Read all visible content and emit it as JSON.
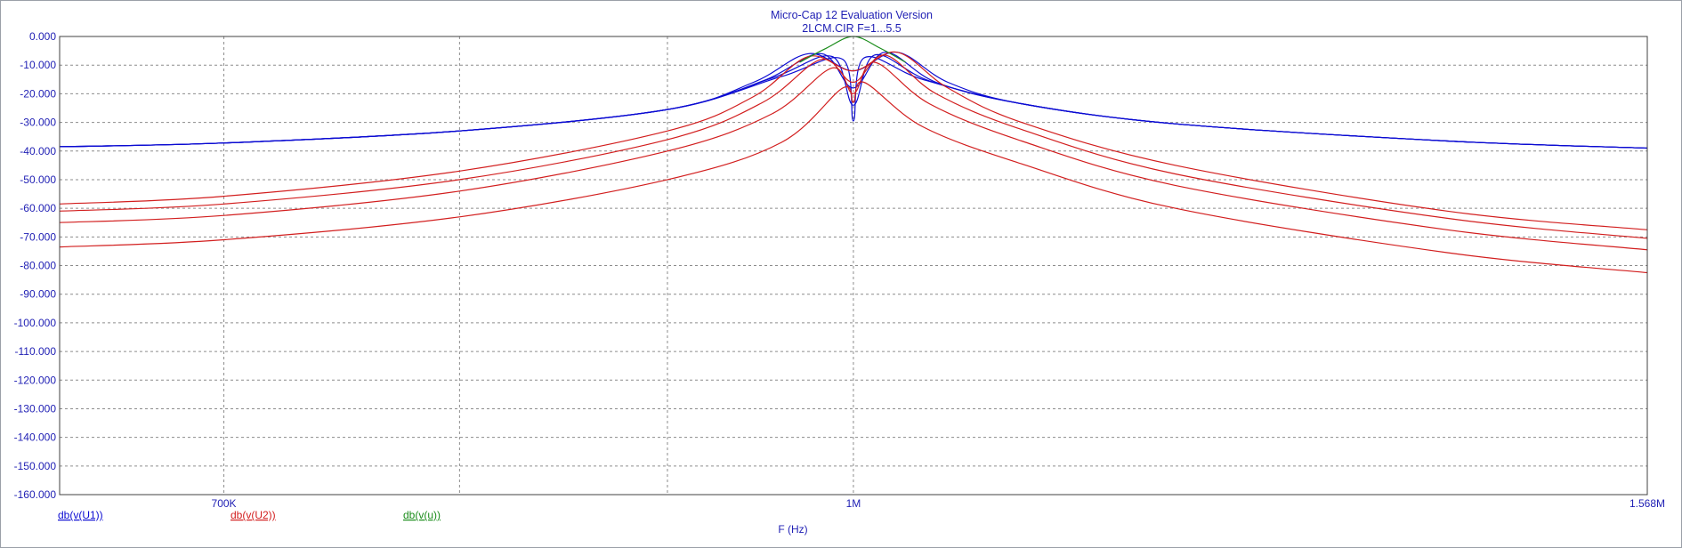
{
  "title_lines": [
    "Micro-Cap 12 Evaluation Version",
    "2LCM.CIR F=1...5.5"
  ],
  "colors": {
    "text": "#1f1fb4",
    "grid": "#8c8c8c",
    "frame": "#404040",
    "series_u1": "#0b0bd2",
    "series_u2": "#d21e1e",
    "series_u": "#1a8c1a"
  },
  "chart_data": {
    "type": "line",
    "title": "Micro-Cap 12 Evaluation Version",
    "subtitle": "2LCM.CIR F=1...5.5",
    "xlabel": "F (Hz)",
    "ylabel": "",
    "x_scale": "log",
    "xlim": [
      637800,
      1568000
    ],
    "ylim": [
      -160,
      0
    ],
    "grid": true,
    "x_ticks": [
      {
        "value": 700000,
        "label": "700K"
      },
      {
        "value": 1000000,
        "label": "1M"
      },
      {
        "value": 1568000,
        "label": "1.568M"
      }
    ],
    "x_grid_values": [
      700000,
      800000,
      900000,
      1000000
    ],
    "y_ticks": [
      0,
      -10,
      -20,
      -30,
      -40,
      -50,
      -60,
      -70,
      -80,
      -90,
      -100,
      -110,
      -120,
      -130,
      -140,
      -150,
      -160
    ],
    "y_tick_labels": [
      "0.000",
      "-10.000",
      "-20.000",
      "-30.000",
      "-40.000",
      "-50.000",
      "-60.000",
      "-70.000",
      "-80.000",
      "-90.000",
      "-100.000",
      "-110.000",
      "-120.000",
      "-130.000",
      "-140.000",
      "-150.000",
      "-160.000"
    ],
    "legend": [
      "db(v(U1))",
      "db(v(U2))",
      "db(v(u))"
    ],
    "legend_position": "bottom-left",
    "series": [
      {
        "name": "db(v(U1))",
        "color": "#0b0bd2",
        "group": "U1",
        "x": [
          637800,
          700000,
          800000,
          900000,
          945000,
          975000,
          1000000,
          1025000,
          1055000,
          1100000,
          1200000,
          1400000,
          1568000
        ],
        "y": [
          -38.5,
          -37.2,
          -33.0,
          -25.5,
          -16.0,
          -6.0,
          -12.0,
          -5.5,
          -16.0,
          -23.5,
          -30.5,
          -36.5,
          -39.0
        ]
      },
      {
        "name": "db(v(U1))",
        "color": "#0b0bd2",
        "group": "U1",
        "x": [
          637800,
          700000,
          800000,
          900000,
          950000,
          982000,
          1000000,
          1018000,
          1048000,
          1100000,
          1200000,
          1400000,
          1568000
        ],
        "y": [
          -38.5,
          -37.2,
          -33.0,
          -25.5,
          -15.5,
          -6.0,
          -18.0,
          -5.5,
          -16.0,
          -23.5,
          -30.5,
          -36.5,
          -39.0
        ]
      },
      {
        "name": "db(v(U1))",
        "color": "#0b0bd2",
        "group": "U1",
        "x": [
          637800,
          700000,
          800000,
          900000,
          955000,
          988000,
          1000000,
          1012000,
          1044000,
          1100000,
          1200000,
          1400000,
          1568000
        ],
        "y": [
          -38.5,
          -37.2,
          -33.0,
          -25.5,
          -14.5,
          -7.0,
          -24.0,
          -6.5,
          -15.5,
          -23.5,
          -30.5,
          -36.5,
          -39.0
        ]
      },
      {
        "name": "db(v(U1))",
        "color": "#0b0bd2",
        "group": "U1",
        "x": [
          637800,
          700000,
          800000,
          900000,
          960000,
          994000,
          1000000,
          1006000,
          1040000,
          1100000,
          1200000,
          1400000,
          1568000
        ],
        "y": [
          -38.5,
          -37.2,
          -33.0,
          -25.5,
          -14.0,
          -8.0,
          -29.5,
          -7.5,
          -15.0,
          -23.5,
          -30.5,
          -36.5,
          -39.0
        ]
      },
      {
        "name": "db(v(U2))",
        "color": "#d21e1e",
        "group": "U2",
        "x": [
          637800,
          700000,
          800000,
          900000,
          945000,
          975000,
          1000000,
          1025000,
          1055000,
          1100000,
          1200000,
          1400000,
          1568000
        ],
        "y": [
          -58.5,
          -55.8,
          -47.0,
          -33.0,
          -21.0,
          -7.0,
          -12.0,
          -5.5,
          -18.0,
          -30.0,
          -45.0,
          -61.0,
          -67.5
        ]
      },
      {
        "name": "db(v(U2))",
        "color": "#d21e1e",
        "group": "U2",
        "x": [
          637800,
          700000,
          800000,
          900000,
          950000,
          982000,
          1000000,
          1018000,
          1048000,
          1100000,
          1200000,
          1400000,
          1568000
        ],
        "y": [
          -61.0,
          -58.5,
          -50.0,
          -36.0,
          -23.0,
          -8.0,
          -16.0,
          -6.5,
          -20.0,
          -32.5,
          -48.0,
          -63.5,
          -70.5
        ]
      },
      {
        "name": "db(v(U2))",
        "color": "#d21e1e",
        "group": "U2",
        "x": [
          637800,
          700000,
          800000,
          900000,
          955000,
          988000,
          1000000,
          1012000,
          1044000,
          1100000,
          1200000,
          1400000,
          1568000
        ],
        "y": [
          -65.0,
          -62.5,
          -54.0,
          -40.0,
          -27.0,
          -11.0,
          -20.0,
          -9.0,
          -23.5,
          -36.5,
          -52.0,
          -67.5,
          -74.5
        ]
      },
      {
        "name": "db(v(U2))",
        "color": "#d21e1e",
        "group": "U2",
        "x": [
          637800,
          700000,
          800000,
          900000,
          960000,
          994000,
          1000000,
          1006000,
          1040000,
          1100000,
          1200000,
          1400000,
          1568000
        ],
        "y": [
          -73.5,
          -71.0,
          -63.0,
          -50.0,
          -37.0,
          -18.0,
          -23.0,
          -16.0,
          -31.5,
          -44.5,
          -60.0,
          -75.5,
          -82.5
        ]
      },
      {
        "name": "db(v(u))",
        "color": "#1a8c1a",
        "group": "u",
        "x": [
          970000,
          985000,
          1000000,
          1015000,
          1030000
        ],
        "y": [
          -9.0,
          -4.0,
          0.0,
          -4.0,
          -9.0
        ]
      }
    ]
  },
  "ytick_labels": [
    "0.000",
    "-10.000",
    "-20.000",
    "-30.000",
    "-40.000",
    "-50.000",
    "-60.000",
    "-70.000",
    "-80.000",
    "-90.000",
    "-100.000",
    "-110.000",
    "-120.000",
    "-130.000",
    "-140.000",
    "-150.000",
    "-160.000"
  ],
  "xtick_labels": [
    "700K",
    "1M",
    "1.568M"
  ],
  "legend_items": [
    "db(v(U1))",
    "db(v(U2))",
    "db(v(u))"
  ],
  "xlabel": "F (Hz)"
}
